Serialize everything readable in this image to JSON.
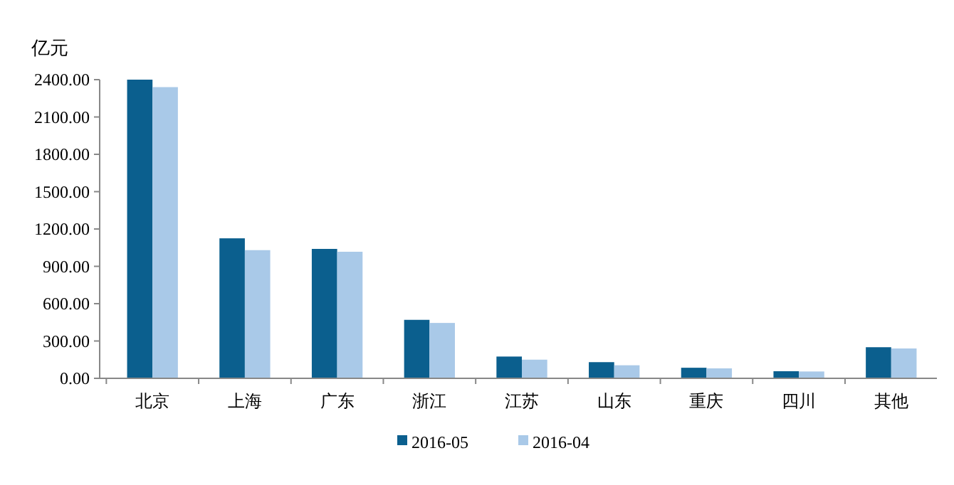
{
  "chart_data": {
    "type": "bar",
    "ylabel": "亿元",
    "categories": [
      "北京",
      "上海",
      "广东",
      "浙江",
      "江苏",
      "山东",
      "重庆",
      "四川",
      "其他"
    ],
    "series": [
      {
        "name": "2016-05",
        "color": "#0b5f8e",
        "values": [
          2400,
          1125,
          1040,
          470,
          175,
          130,
          85,
          57,
          250
        ]
      },
      {
        "name": "2016-04",
        "color": "#a9c9e8",
        "values": [
          2340,
          1030,
          1017,
          445,
          150,
          105,
          80,
          55,
          240
        ]
      }
    ],
    "ylim": [
      0,
      2400
    ],
    "yticks": [
      {
        "value": 0,
        "label": "0.00"
      },
      {
        "value": 300,
        "label": "300.00"
      },
      {
        "value": 600,
        "label": "600.00"
      },
      {
        "value": 900,
        "label": "900.00"
      },
      {
        "value": 1200,
        "label": "1200.00"
      },
      {
        "value": 1500,
        "label": "1500.00"
      },
      {
        "value": 1800,
        "label": "1800.00"
      },
      {
        "value": 2100,
        "label": "2100.00"
      },
      {
        "value": 2400,
        "label": "2400.00"
      }
    ],
    "grid": false,
    "legend": "bottom"
  }
}
